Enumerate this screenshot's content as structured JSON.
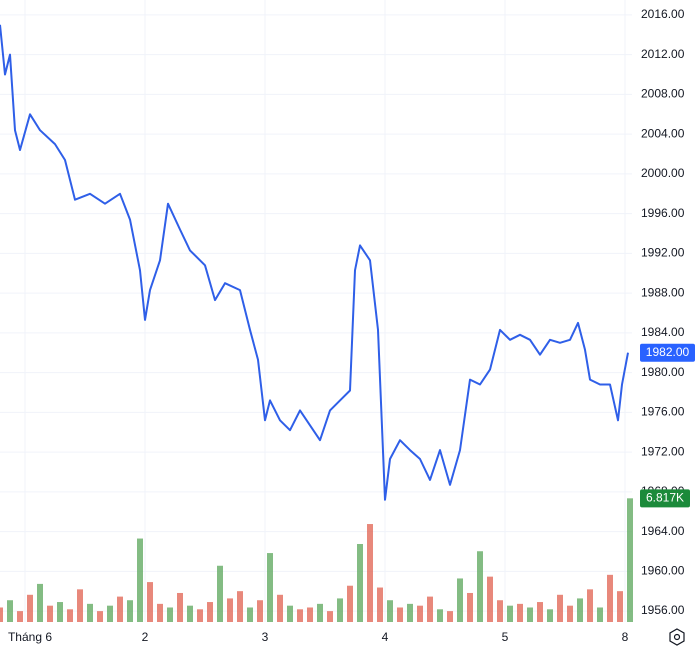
{
  "chart_data": {
    "type": "line",
    "x": [
      -5,
      -4,
      -3,
      -2,
      -1,
      1,
      3,
      6,
      8,
      10,
      13,
      16,
      19,
      21,
      23,
      24,
      25,
      27,
      28.6,
      31,
      33,
      36,
      38,
      40,
      43,
      45,
      46.6,
      48,
      49,
      51,
      53,
      55,
      57,
      59,
      61,
      63,
      65,
      66,
      67,
      69,
      70.6,
      72,
      73,
      75,
      77,
      79,
      81,
      83,
      85,
      87,
      89,
      91,
      93,
      95,
      97,
      99,
      101,
      103,
      105,
      107,
      109,
      110.6,
      112,
      113,
      115,
      117,
      118.6,
      119.4,
      120.6
    ],
    "series": [
      {
        "color": "#2f5fe8",
        "values": [
          2015,
          2010,
          2012,
          2004.4,
          2002.4,
          2006,
          2004.4,
          2003,
          2001.4,
          1997.4,
          1998,
          1997,
          1998,
          1995.4,
          1990.3,
          1985.3,
          1988.3,
          1991.3,
          1997,
          1994.4,
          1992.3,
          1990.8,
          1987.3,
          1989,
          1988.3,
          1984.3,
          1981.3,
          1975.2,
          1977.2,
          1975.2,
          1974.2,
          1976.2,
          1974.7,
          1973.2,
          1976.2,
          1977.2,
          1978.2,
          1990.3,
          1992.8,
          1991.3,
          1984.3,
          1967.2,
          1971.3,
          1973.2,
          1972.2,
          1971.3,
          1969.2,
          1972.2,
          1968.7,
          1972.2,
          1979.3,
          1978.8,
          1980.3,
          1984.3,
          1983.3,
          1983.8,
          1983.3,
          1981.8,
          1983.3,
          1983,
          1983.3,
          1985,
          1982.3,
          1979.3,
          1978.8,
          1978.8,
          1975.2,
          1978.8,
          1982
        ]
      }
    ],
    "xlim": [
      -5,
      121.4
    ],
    "xticks": [
      {
        "value": 0,
        "label": "Tháng 6"
      },
      {
        "value": 24,
        "label": "2"
      },
      {
        "value": 48,
        "label": "3"
      },
      {
        "value": 72,
        "label": "4"
      },
      {
        "value": 96,
        "label": "5"
      },
      {
        "value": 120,
        "label": "8"
      }
    ],
    "ylim": [
      1954.9,
      2017.5
    ],
    "yticks": [
      {
        "value": 2016,
        "label": "2016.00"
      },
      {
        "value": 2012,
        "label": "2012.00"
      },
      {
        "value": 2008,
        "label": "2008.00"
      },
      {
        "value": 2004,
        "label": "2004.00"
      },
      {
        "value": 2000,
        "label": "2000.00"
      },
      {
        "value": 1996,
        "label": "1996.00"
      },
      {
        "value": 1992,
        "label": "1992.00"
      },
      {
        "value": 1988,
        "label": "1988.00"
      },
      {
        "value": 1984,
        "label": "1984.00"
      },
      {
        "value": 1980,
        "label": "1980.00"
      },
      {
        "value": 1976,
        "label": "1976.00"
      },
      {
        "value": 1972,
        "label": "1972.00"
      },
      {
        "value": 1968,
        "label": "1968.00"
      },
      {
        "value": 1964,
        "label": "1964.00"
      },
      {
        "value": 1960,
        "label": "1960.00"
      },
      {
        "value": 1956,
        "label": "1956.00"
      }
    ],
    "grid": true,
    "last_price": {
      "value": 1982,
      "label": "1982.00",
      "color": "#2962ff"
    },
    "volume": {
      "x": [
        -5,
        -3,
        -1,
        1,
        3,
        5,
        7,
        9,
        11,
        13,
        15,
        17,
        19,
        21,
        23,
        25,
        27,
        29,
        31,
        33,
        35,
        37,
        39,
        41,
        43,
        45,
        47,
        49,
        51,
        53,
        55,
        57,
        59,
        61,
        63,
        65,
        67,
        69,
        71,
        73,
        75,
        77,
        79,
        81,
        83,
        85,
        87,
        89,
        91,
        93,
        95,
        97,
        99,
        101,
        103,
        105,
        107,
        109,
        111,
        113,
        115,
        117,
        119,
        121
      ],
      "values": [
        0.8,
        1.2,
        0.6,
        1.5,
        2.1,
        0.9,
        1.1,
        0.7,
        1.8,
        1.0,
        0.6,
        0.9,
        1.4,
        1.2,
        4.6,
        2.2,
        1.0,
        0.8,
        1.6,
        0.9,
        0.7,
        1.1,
        3.1,
        1.3,
        1.7,
        0.8,
        1.2,
        3.8,
        1.5,
        0.9,
        0.7,
        0.8,
        1.0,
        0.6,
        1.3,
        2.0,
        4.3,
        5.4,
        1.9,
        1.2,
        0.8,
        1.0,
        0.9,
        1.4,
        0.7,
        0.6,
        2.4,
        1.6,
        3.9,
        2.5,
        1.2,
        0.9,
        1.0,
        0.8,
        1.1,
        0.7,
        1.5,
        0.9,
        1.3,
        1.8,
        0.8,
        2.6,
        1.7,
        6.817
      ],
      "colors": [
        "#e0604f",
        "#5aa65a",
        "#e0604f",
        "#e0604f",
        "#5aa65a",
        "#e0604f",
        "#5aa65a",
        "#e0604f",
        "#e0604f",
        "#5aa65a",
        "#e0604f",
        "#5aa65a",
        "#e0604f",
        "#5aa65a",
        "#5aa65a",
        "#e0604f",
        "#e0604f",
        "#5aa65a",
        "#e0604f",
        "#5aa65a",
        "#e0604f",
        "#e0604f",
        "#5aa65a",
        "#e0604f",
        "#e0604f",
        "#5aa65a",
        "#e0604f",
        "#5aa65a",
        "#e0604f",
        "#5aa65a",
        "#e0604f",
        "#e0604f",
        "#5aa65a",
        "#e0604f",
        "#5aa65a",
        "#e0604f",
        "#5aa65a",
        "#e0604f",
        "#e0604f",
        "#5aa65a",
        "#e0604f",
        "#5aa65a",
        "#e0604f",
        "#e0604f",
        "#5aa65a",
        "#e0604f",
        "#5aa65a",
        "#e0604f",
        "#5aa65a",
        "#e0604f",
        "#e0604f",
        "#5aa65a",
        "#e0604f",
        "#5aa65a",
        "#e0604f",
        "#5aa65a",
        "#e0604f",
        "#e0604f",
        "#5aa65a",
        "#e0604f",
        "#5aa65a",
        "#e0604f",
        "#e0604f",
        "#5aa65a"
      ],
      "ylim": [
        0,
        7
      ],
      "last": {
        "value": 6.817,
        "label": "6.817K",
        "color": "#1b8a3a"
      }
    }
  }
}
